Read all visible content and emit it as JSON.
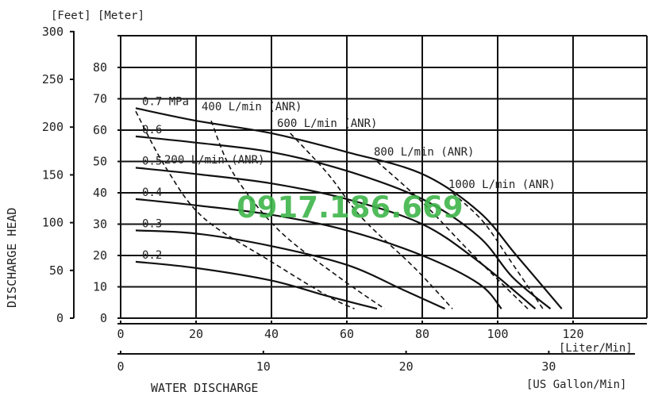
{
  "watermark": "0917.186.669",
  "chart_data": {
    "type": "line",
    "title": "",
    "left_axis_units": "[Feet] [Meter]",
    "ylabel": "DISCHARGE HEAD",
    "xlabel": "WATER DISCHARGE",
    "x_unit_primary": "[Liter/Min]",
    "x_unit_secondary": "[US Gallon/Min]",
    "xlim": [
      0,
      140
    ],
    "ylim": [
      0,
      90
    ],
    "grid": true,
    "x_ticks": [
      "0",
      "20",
      "40",
      "60",
      "80",
      "100",
      "120"
    ],
    "x_ticks_gallon": [
      "0",
      "10",
      "20",
      "30"
    ],
    "y_ticks_meter": [
      "0",
      "10",
      "20",
      "30",
      "40",
      "50",
      "60",
      "70",
      "80"
    ],
    "y_ticks_feet": [
      "0",
      "50",
      "100",
      "150",
      "200",
      "250",
      "300"
    ],
    "pressure_series": [
      {
        "name": "0.7 MPa",
        "points": [
          [
            4,
            67
          ],
          [
            20,
            63
          ],
          [
            40,
            59
          ],
          [
            60,
            53
          ],
          [
            80,
            46
          ],
          [
            95,
            34
          ],
          [
            105,
            20
          ],
          [
            117,
            3
          ]
        ]
      },
      {
        "name": "0.6",
        "points": [
          [
            4,
            58
          ],
          [
            20,
            56
          ],
          [
            40,
            53
          ],
          [
            60,
            47
          ],
          [
            80,
            38
          ],
          [
            95,
            26
          ],
          [
            104,
            13
          ],
          [
            114,
            3
          ]
        ]
      },
      {
        "name": "0.5",
        "points": [
          [
            4,
            48
          ],
          [
            20,
            46
          ],
          [
            40,
            43
          ],
          [
            60,
            38
          ],
          [
            80,
            30
          ],
          [
            95,
            18
          ],
          [
            110,
            3
          ]
        ]
      },
      {
        "name": "0.4",
        "points": [
          [
            4,
            38
          ],
          [
            20,
            36
          ],
          [
            40,
            33
          ],
          [
            60,
            28
          ],
          [
            80,
            20
          ],
          [
            95,
            11
          ],
          [
            101,
            3
          ]
        ]
      },
      {
        "name": "0.3",
        "points": [
          [
            4,
            28
          ],
          [
            20,
            27
          ],
          [
            40,
            23
          ],
          [
            60,
            17
          ],
          [
            75,
            9
          ],
          [
            86,
            3
          ]
        ]
      },
      {
        "name": "0.2",
        "points": [
          [
            4,
            18
          ],
          [
            20,
            16
          ],
          [
            40,
            12
          ],
          [
            55,
            7
          ],
          [
            68,
            3
          ]
        ]
      }
    ],
    "air_consumption_series": [
      {
        "name": "200 L/min (ANR)",
        "points": [
          [
            4,
            66
          ],
          [
            12,
            48
          ],
          [
            22,
            32
          ],
          [
            40,
            18
          ],
          [
            55,
            7
          ],
          [
            62,
            3
          ]
        ]
      },
      {
        "name": "400 L/min (ANR)",
        "points": [
          [
            24,
            63
          ],
          [
            30,
            46
          ],
          [
            42,
            28
          ],
          [
            58,
            13
          ],
          [
            70,
            3
          ]
        ]
      },
      {
        "name": "600 L/min (ANR)",
        "points": [
          [
            45,
            59
          ],
          [
            55,
            46
          ],
          [
            64,
            32
          ],
          [
            78,
            16
          ],
          [
            88,
            3
          ]
        ]
      },
      {
        "name": "800 L/min (ANR)",
        "points": [
          [
            68,
            50
          ],
          [
            80,
            37
          ],
          [
            92,
            22
          ],
          [
            102,
            10
          ],
          [
            108,
            3
          ]
        ]
      },
      {
        "name": "1000 L/min (ANR)",
        "points": [
          [
            88,
            40
          ],
          [
            96,
            31
          ],
          [
            103,
            19
          ],
          [
            112,
            3
          ]
        ]
      }
    ]
  }
}
